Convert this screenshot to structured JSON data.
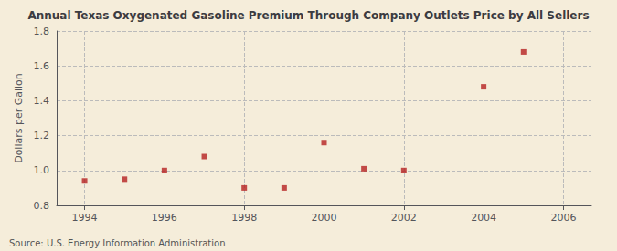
{
  "chart_data": {
    "type": "scatter",
    "title": "Annual Texas Oxygenated Gasoline Premium Through Company Outlets Price by All Sellers",
    "ylabel": "Dollars per Gallon",
    "annotations": [
      "Source: U.S. Energy Information Administration"
    ],
    "x": [
      1994,
      1995,
      1996,
      1997,
      1998,
      1999,
      2000,
      2001,
      2002,
      2004,
      2005
    ],
    "values": [
      0.94,
      0.95,
      1.0,
      1.08,
      0.9,
      0.9,
      1.16,
      1.01,
      1.0,
      1.48,
      1.68
    ],
    "xlim": [
      1993.3,
      2006.7
    ],
    "ylim": [
      0.8,
      1.8
    ],
    "xticks": [
      1994,
      1996,
      1998,
      2000,
      2002,
      2004,
      2006
    ],
    "yticks": [
      0.8,
      {
        "value": 1.0,
        "label": "1.0"
      },
      1.2,
      1.4,
      1.6,
      1.8
    ],
    "color": "#b52020",
    "marker": "square",
    "grid": true
  }
}
